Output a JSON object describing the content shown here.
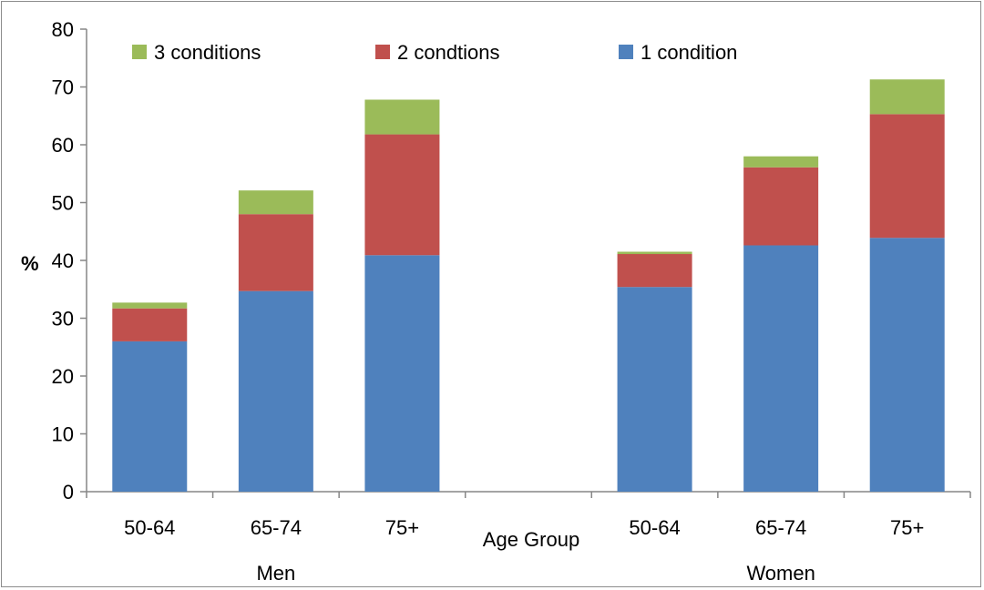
{
  "chart_data": {
    "type": "bar",
    "stacked": true,
    "title": "",
    "xlabel": "Age Group",
    "ylabel": "%",
    "ylim": [
      0,
      80
    ],
    "yticks": [
      0,
      10,
      20,
      30,
      40,
      50,
      60,
      70,
      80
    ],
    "grid": false,
    "legend_position": "top",
    "groups": [
      "Men",
      "Women"
    ],
    "categories": [
      "50-64",
      "65-74",
      "75+",
      "50-64",
      "65-74",
      "75+"
    ],
    "category_groups": [
      "Men",
      "Men",
      "Men",
      "Women",
      "Women",
      "Women"
    ],
    "series": [
      {
        "name": "1 condition",
        "color": "#4f81bd",
        "values": [
          26.0,
          34.7,
          40.9,
          35.4,
          42.6,
          43.9
        ]
      },
      {
        "name": "2 condtions",
        "color": "#c0504d",
        "values": [
          5.7,
          13.3,
          20.9,
          5.7,
          13.5,
          21.4
        ]
      },
      {
        "name": "3 conditions",
        "color": "#9bbb59",
        "values": [
          1.0,
          4.1,
          6.0,
          0.4,
          1.9,
          6.0
        ]
      }
    ],
    "legend_order": [
      "3 conditions",
      "2 condtions",
      "1 condition"
    ]
  }
}
